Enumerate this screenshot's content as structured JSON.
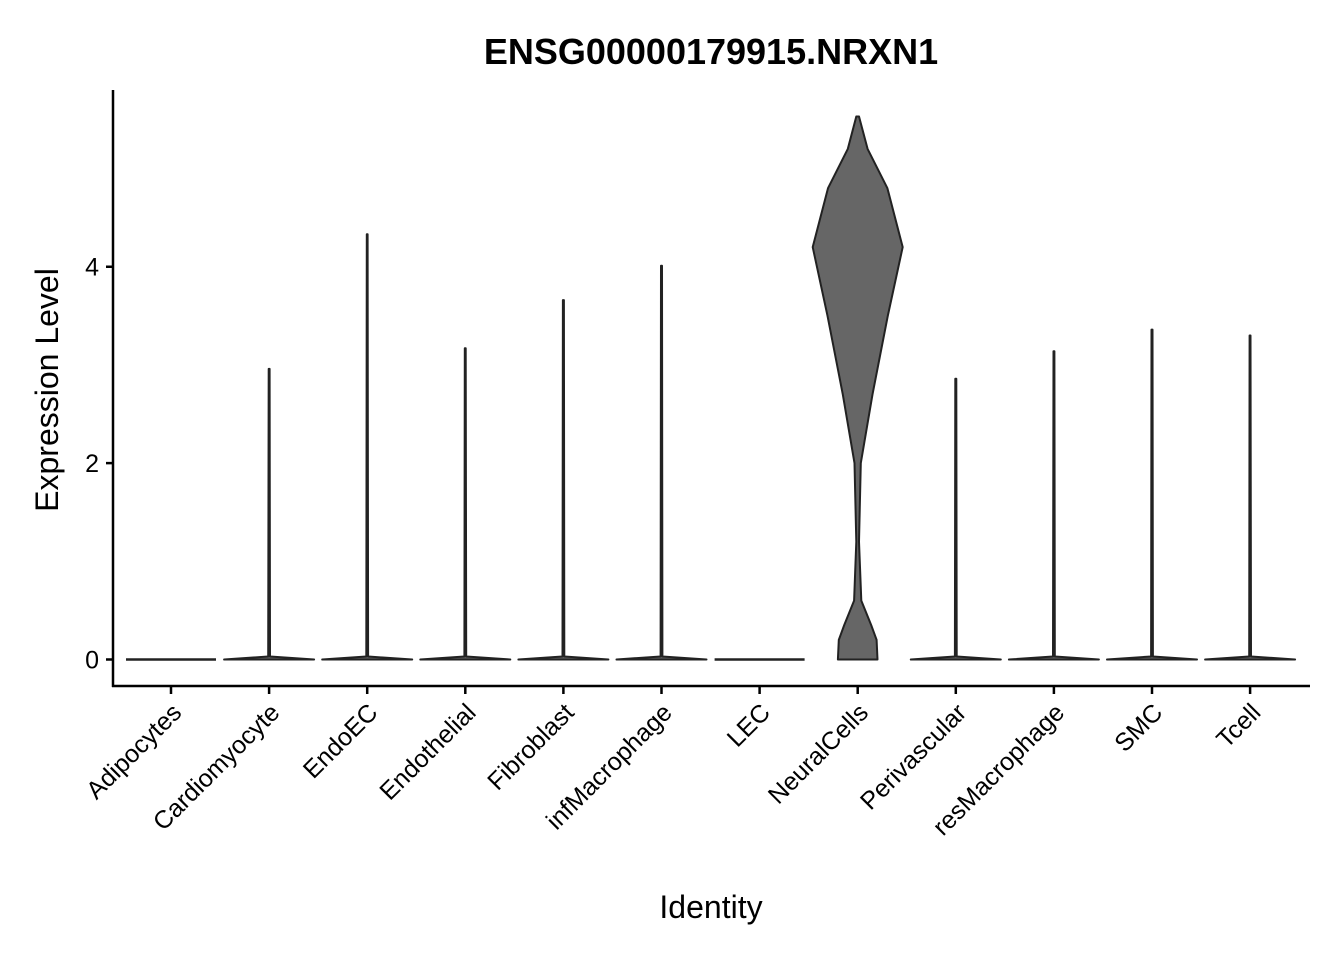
{
  "chart_data": {
    "type": "violin",
    "title": "ENSG00000179915.NRXN1",
    "x_label": "Identity",
    "y_label": "Expression Level",
    "categories": [
      "Adipocytes",
      "Cardiomyocyte",
      "EndoEC",
      "Endothelial",
      "Fibroblast",
      "infMacrophage",
      "LEC",
      "NeuralCells",
      "Perivascular",
      "resMacrophage",
      "SMC",
      "Tcell"
    ],
    "violins": [
      {
        "y": [
          0
        ],
        "width": [
          1
        ]
      },
      {
        "y": [
          0,
          0.03,
          2.96
        ],
        "width": [
          1,
          0.02,
          0.01
        ]
      },
      {
        "y": [
          0,
          0.03,
          4.33
        ],
        "width": [
          1,
          0.02,
          0.01
        ]
      },
      {
        "y": [
          0,
          0.03,
          3.17
        ],
        "width": [
          1,
          0.02,
          0.01
        ]
      },
      {
        "y": [
          0,
          0.03,
          3.66
        ],
        "width": [
          1,
          0.02,
          0.01
        ]
      },
      {
        "y": [
          0,
          0.03,
          4.01
        ],
        "width": [
          1,
          0.02,
          0.01
        ]
      },
      {
        "y": [
          0
        ],
        "width": [
          1
        ]
      },
      {
        "y": [
          0,
          0.2,
          0.35,
          0.6,
          1.2,
          2.0,
          2.7,
          3.5,
          4.2,
          4.8,
          5.2,
          5.53
        ],
        "width": [
          0.44,
          0.42,
          0.3,
          0.08,
          0.03,
          0.07,
          0.33,
          0.67,
          1.0,
          0.66,
          0.22,
          0.03
        ]
      },
      {
        "y": [
          0,
          0.03,
          2.86
        ],
        "width": [
          1,
          0.02,
          0.01
        ]
      },
      {
        "y": [
          0,
          0.03,
          3.14
        ],
        "width": [
          1,
          0.02,
          0.01
        ]
      },
      {
        "y": [
          0,
          0.03,
          3.36
        ],
        "width": [
          1,
          0.02,
          0.01
        ]
      },
      {
        "y": [
          0,
          0.03,
          3.3
        ],
        "width": [
          1,
          0.02,
          0.01
        ]
      }
    ],
    "fill": "#666666",
    "stroke": "#222222",
    "ylim": [
      -0.27,
      5.8
    ],
    "yticks": [
      0,
      2,
      4
    ]
  }
}
